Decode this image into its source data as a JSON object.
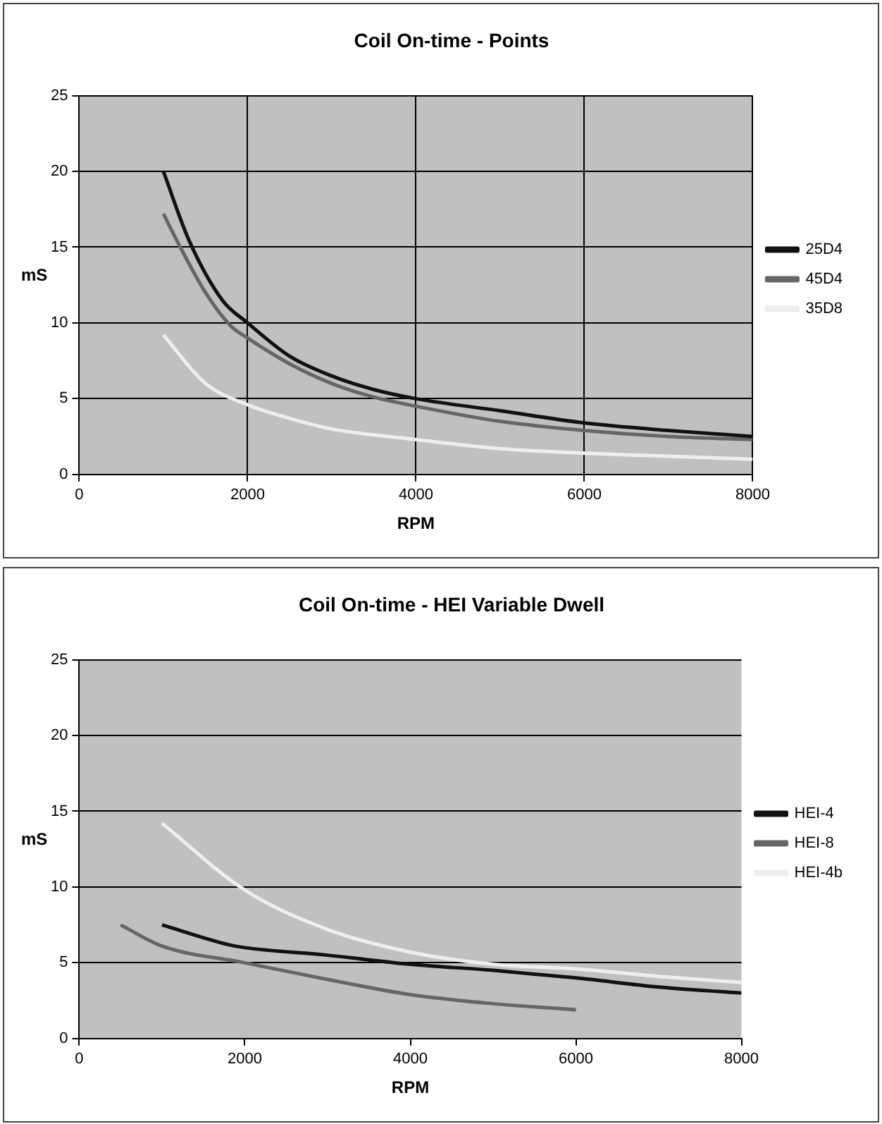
{
  "chart_data": [
    {
      "type": "line",
      "title": "Coil On-time - Points",
      "xlabel": "RPM",
      "ylabel": "mS",
      "xlim": [
        0,
        8000
      ],
      "xticks": [
        0,
        2000,
        4000,
        6000,
        8000
      ],
      "ylim": [
        0,
        25
      ],
      "yticks": [
        0,
        5,
        10,
        15,
        20,
        25
      ],
      "grid": true,
      "legend": "right",
      "series": [
        {
          "name": "25D4",
          "color": "#111111",
          "x": [
            1000,
            1300,
            1700,
            2000,
            2500,
            3000,
            3500,
            4000,
            5000,
            6000,
            7000,
            8000
          ],
          "values": [
            20,
            15.5,
            11.5,
            10,
            7.8,
            6.5,
            5.6,
            5,
            4.2,
            3.4,
            2.9,
            2.5
          ]
        },
        {
          "name": "45D4",
          "color": "#666666",
          "x": [
            1000,
            1200,
            1500,
            1800,
            2000,
            2500,
            3000,
            3500,
            4000,
            5000,
            6000,
            7000,
            8000
          ],
          "values": [
            17.2,
            15,
            12,
            9.8,
            9,
            7.3,
            6,
            5.1,
            4.5,
            3.5,
            2.9,
            2.5,
            2.3
          ]
        },
        {
          "name": "35D8",
          "color": "#eeeeee",
          "x": [
            1000,
            1500,
            2000,
            2500,
            3000,
            4000,
            5000,
            6000,
            7000,
            8000
          ],
          "values": [
            9.2,
            6,
            4.6,
            3.7,
            3,
            2.3,
            1.7,
            1.4,
            1.2,
            1
          ]
        }
      ]
    },
    {
      "type": "line",
      "title": "Coil On-time - HEI Variable Dwell",
      "xlabel": "RPM",
      "ylabel": "mS",
      "xlim": [
        0,
        8000
      ],
      "xticks": [
        0,
        2000,
        4000,
        6000,
        8000
      ],
      "ylim": [
        0,
        25
      ],
      "yticks": [
        0,
        5,
        10,
        15,
        20,
        25
      ],
      "grid": "y",
      "legend": "right",
      "series": [
        {
          "name": "HEI-4",
          "color": "#111111",
          "x": [
            1000,
            1800,
            2000,
            3000,
            4000,
            5000,
            6000,
            7000,
            8000
          ],
          "values": [
            7.5,
            6.2,
            6,
            5.5,
            4.9,
            4.5,
            4,
            3.4,
            3
          ]
        },
        {
          "name": "HEI-8",
          "color": "#666666",
          "x": [
            500,
            1000,
            2000,
            3000,
            4000,
            5000,
            6000
          ],
          "values": [
            7.5,
            6.1,
            5,
            3.9,
            2.9,
            2.3,
            1.9
          ]
        },
        {
          "name": "HEI-4b",
          "color": "#eeeeee",
          "x": [
            1000,
            2000,
            3000,
            4000,
            5000,
            6000,
            7000,
            8000
          ],
          "values": [
            14.2,
            9.8,
            7.2,
            5.7,
            4.9,
            4.6,
            4.1,
            3.7
          ]
        }
      ]
    }
  ]
}
